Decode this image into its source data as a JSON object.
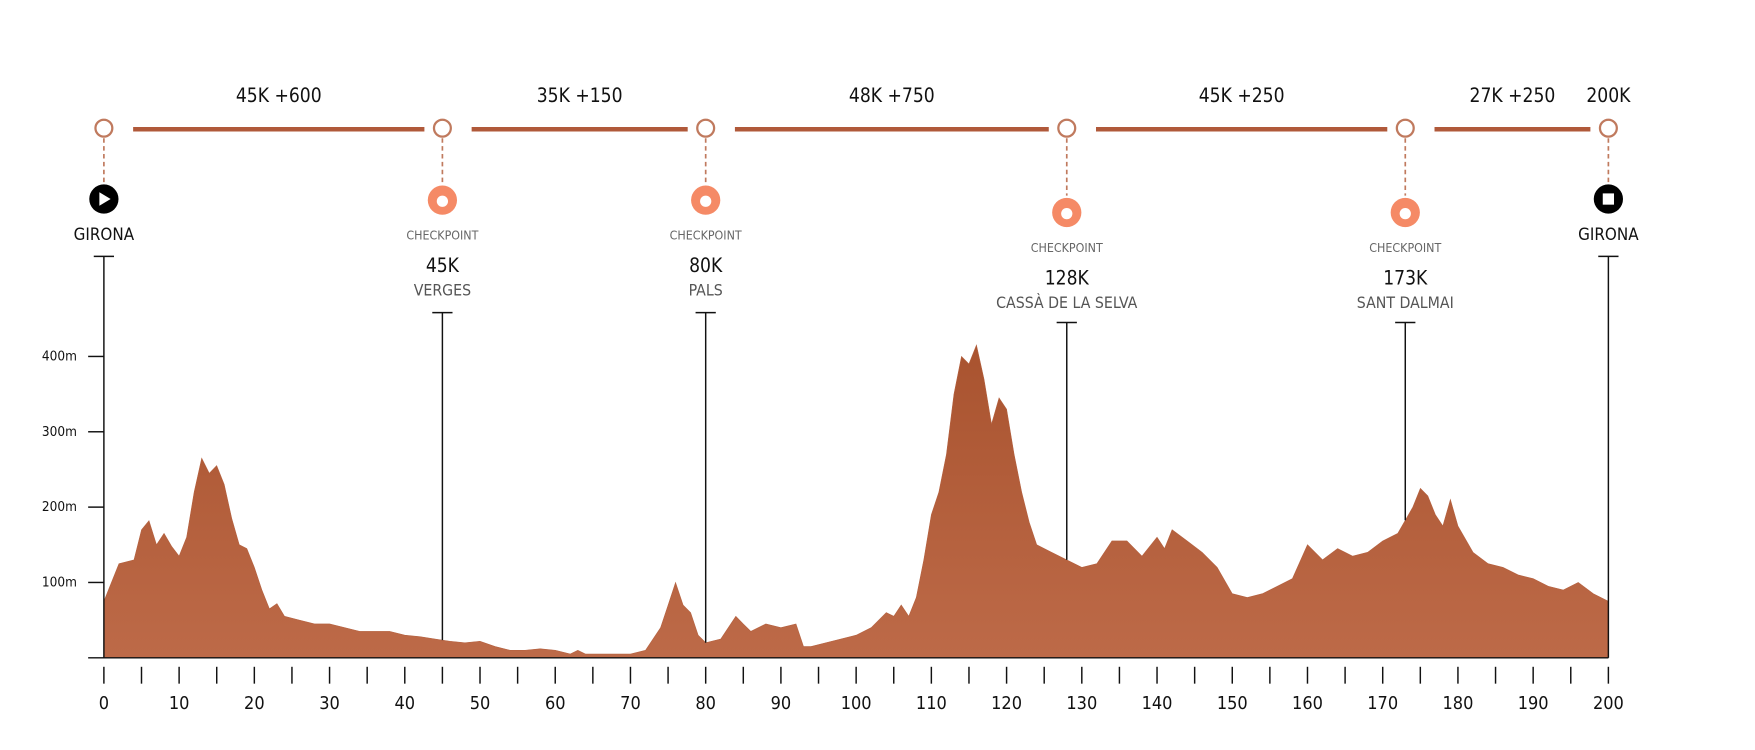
{
  "chart_data": {
    "type": "area",
    "color": "#b3603f",
    "x": [
      0,
      2,
      4,
      5,
      6,
      7,
      8,
      9,
      10,
      11,
      12,
      13,
      14,
      15,
      16,
      17,
      18,
      19,
      20,
      21,
      22,
      23,
      24,
      26,
      28,
      30,
      32,
      34,
      36,
      38,
      40,
      42,
      44,
      46,
      48,
      50,
      52,
      54,
      56,
      58,
      60,
      62,
      63,
      64,
      66,
      70,
      72,
      74,
      75,
      76,
      77,
      78,
      79,
      80,
      82,
      84,
      85,
      86,
      88,
      90,
      92,
      93,
      94,
      96,
      100,
      102,
      104,
      105,
      106,
      107,
      108,
      109,
      110,
      111,
      112,
      113,
      114,
      115,
      116,
      117,
      118,
      119,
      120,
      121,
      122,
      123,
      124,
      126,
      128,
      130,
      132,
      134,
      136,
      138,
      140,
      141,
      142,
      144,
      146,
      148,
      150,
      152,
      154,
      156,
      158,
      160,
      162,
      164,
      166,
      168,
      170,
      172,
      174,
      175,
      176,
      177,
      178,
      179,
      180,
      182,
      184,
      186,
      188,
      190,
      192,
      194,
      196,
      198,
      200
    ],
    "values": [
      75,
      125,
      130,
      170,
      182,
      150,
      165,
      148,
      135,
      160,
      220,
      265,
      245,
      255,
      230,
      185,
      150,
      145,
      120,
      90,
      65,
      72,
      55,
      50,
      45,
      45,
      40,
      35,
      35,
      35,
      30,
      28,
      25,
      22,
      20,
      22,
      15,
      10,
      10,
      12,
      10,
      5,
      10,
      5,
      5,
      5,
      10,
      40,
      70,
      100,
      70,
      60,
      30,
      20,
      25,
      55,
      45,
      35,
      45,
      40,
      45,
      15,
      15,
      20,
      30,
      40,
      60,
      55,
      70,
      55,
      80,
      130,
      190,
      220,
      270,
      350,
      400,
      390,
      415,
      370,
      310,
      345,
      330,
      270,
      220,
      180,
      150,
      140,
      130,
      120,
      125,
      155,
      155,
      135,
      160,
      145,
      170,
      155,
      140,
      120,
      85,
      80,
      85,
      95,
      105,
      150,
      130,
      145,
      135,
      140,
      155,
      165,
      200,
      225,
      215,
      190,
      175,
      210,
      175,
      140,
      125,
      120,
      110,
      105,
      95,
      90,
      100,
      85,
      75
    ],
    "xlim": [
      0,
      200
    ],
    "ylim": [
      0,
      400
    ],
    "xticks": [
      0,
      10,
      20,
      30,
      40,
      50,
      60,
      70,
      80,
      90,
      100,
      110,
      120,
      130,
      140,
      150,
      160,
      170,
      180,
      190,
      200
    ],
    "xticks_minor": [
      5,
      15,
      25,
      35,
      45,
      55,
      65,
      75,
      85,
      95,
      105,
      115,
      125,
      135,
      145,
      155,
      165,
      175,
      185,
      195
    ],
    "yticks": [
      {
        "value": 100,
        "label": "100m"
      },
      {
        "value": 200,
        "label": "200m"
      },
      {
        "value": 300,
        "label": "300m"
      },
      {
        "value": 400,
        "label": "400m"
      }
    ],
    "segments": [
      {
        "label": "45K +600",
        "from": 0,
        "to": 45
      },
      {
        "label": "35K +150",
        "from": 45,
        "to": 80
      },
      {
        "label": "48K +750",
        "from": 80,
        "to": 128
      },
      {
        "label": "45K +250",
        "from": 128,
        "to": 173
      },
      {
        "label": "27K +250",
        "from": 173,
        "to": 200
      }
    ],
    "waypoints": [
      {
        "km": 0,
        "icon": "start",
        "name": "GIRONA"
      },
      {
        "km": 45,
        "icon": "checkpoint",
        "kind": "CHECKPOINT",
        "km_label": "45K",
        "name": "VERGES",
        "row": 0
      },
      {
        "km": 80,
        "icon": "checkpoint",
        "kind": "CHECKPOINT",
        "km_label": "80K",
        "name": "PALS",
        "row": 0
      },
      {
        "km": 128,
        "icon": "checkpoint",
        "kind": "CHECKPOINT",
        "km_label": "128K",
        "name": "CASSÀ DE LA SELVA",
        "row": 1
      },
      {
        "km": 173,
        "icon": "checkpoint",
        "kind": "CHECKPOINT",
        "km_label": "173K",
        "name": "SANT DALMAI",
        "row": 1
      },
      {
        "km": 200,
        "icon": "finish",
        "km_label": "200K",
        "name": "GIRONA"
      }
    ]
  }
}
